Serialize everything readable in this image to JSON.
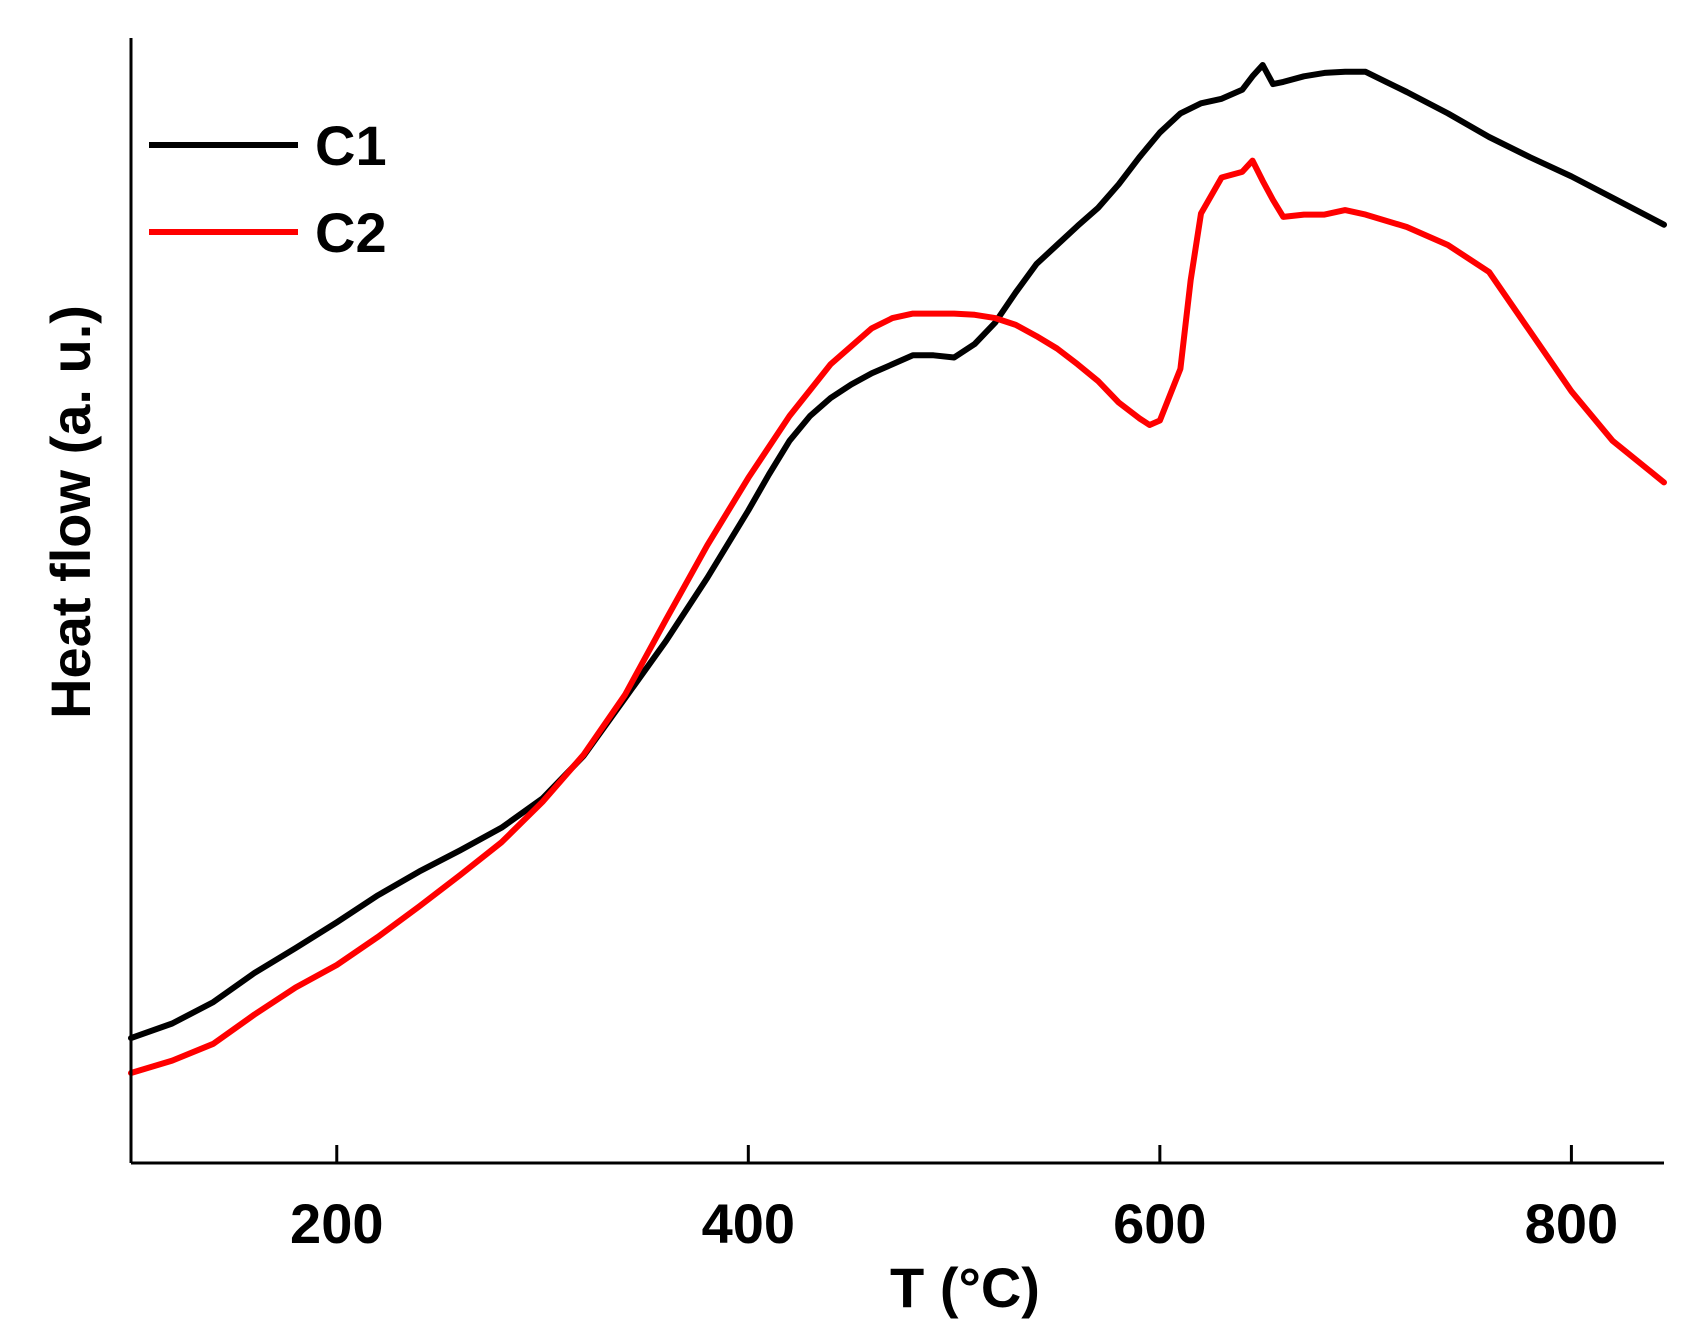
{
  "chart_data": {
    "type": "line",
    "title": "",
    "xlabel": "T (°C)",
    "ylabel": "Heat flow (a. u.)",
    "xlim": [
      100,
      845
    ],
    "ylim": [
      0,
      100
    ],
    "xticks": [
      200,
      400,
      600,
      800
    ],
    "xtick_labels": [
      "200",
      "400",
      "600",
      "800"
    ],
    "yticks_shown": false,
    "grid": false,
    "legend": {
      "position": "top-left"
    },
    "series": [
      {
        "name": "C1",
        "color": "#000000",
        "x": [
          100,
          120,
          140,
          160,
          180,
          200,
          220,
          240,
          260,
          280,
          300,
          320,
          340,
          360,
          380,
          400,
          410,
          420,
          430,
          440,
          450,
          460,
          470,
          480,
          490,
          500,
          510,
          520,
          530,
          540,
          550,
          560,
          570,
          580,
          590,
          600,
          610,
          620,
          630,
          640,
          645,
          650,
          655,
          660,
          670,
          680,
          690,
          700,
          710,
          720,
          740,
          760,
          780,
          800,
          820,
          845
        ],
        "y": [
          11.1,
          12.4,
          14.3,
          16.9,
          19.1,
          21.4,
          23.8,
          25.9,
          27.8,
          29.8,
          32.4,
          36.2,
          41.3,
          46.4,
          52.0,
          58.0,
          61.2,
          64.2,
          66.4,
          68.0,
          69.2,
          70.2,
          71.0,
          71.8,
          71.8,
          71.6,
          72.8,
          74.7,
          77.4,
          79.9,
          81.6,
          83.3,
          84.9,
          87.0,
          89.4,
          91.6,
          93.3,
          94.2,
          94.6,
          95.4,
          96.6,
          97.6,
          95.9,
          96.1,
          96.6,
          96.9,
          97.0,
          97.0,
          96.1,
          95.2,
          93.3,
          91.2,
          89.4,
          87.7,
          85.8,
          83.4
        ]
      },
      {
        "name": "C2",
        "color": "#ff0000",
        "x": [
          100,
          120,
          140,
          160,
          180,
          200,
          220,
          240,
          260,
          280,
          300,
          320,
          340,
          360,
          380,
          400,
          420,
          440,
          460,
          470,
          480,
          490,
          500,
          510,
          520,
          530,
          540,
          550,
          560,
          570,
          580,
          590,
          595,
          600,
          610,
          615,
          620,
          630,
          640,
          645,
          650,
          655,
          660,
          670,
          680,
          690,
          700,
          720,
          740,
          760,
          780,
          800,
          820,
          845
        ],
        "y": [
          8.0,
          9.1,
          10.6,
          13.2,
          15.6,
          17.6,
          20.1,
          22.8,
          25.6,
          28.5,
          32.1,
          36.3,
          41.6,
          48.3,
          54.9,
          60.9,
          66.4,
          71.0,
          74.2,
          75.1,
          75.5,
          75.5,
          75.5,
          75.4,
          75.1,
          74.5,
          73.5,
          72.4,
          71.0,
          69.5,
          67.6,
          66.2,
          65.6,
          66.0,
          70.6,
          78.5,
          84.4,
          87.6,
          88.1,
          89.1,
          87.3,
          85.6,
          84.1,
          84.3,
          84.3,
          84.7,
          84.3,
          83.2,
          81.6,
          79.2,
          73.9,
          68.6,
          64.2,
          60.5
        ]
      }
    ]
  }
}
